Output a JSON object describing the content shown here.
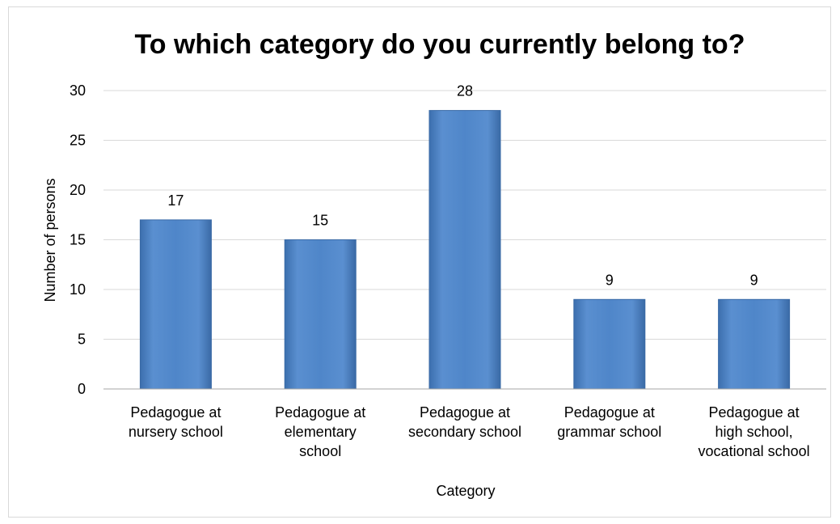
{
  "chart_data": {
    "type": "bar",
    "title": "To which category do you currently belong to?",
    "xlabel": "Category",
    "ylabel": "Number of persons",
    "categories": [
      [
        "Pedagogue at",
        "nursery school"
      ],
      [
        "Pedagogue at",
        "elementary",
        "school"
      ],
      [
        "Pedagogue at",
        "secondary school"
      ],
      [
        "Pedagogue at",
        "grammar school"
      ],
      [
        "Pedagogue at",
        "high school,",
        "vocational school"
      ]
    ],
    "values": [
      17,
      15,
      28,
      9,
      9
    ],
    "data_labels": [
      "17",
      "15",
      "28",
      "9",
      "9"
    ],
    "ylim": [
      0,
      30
    ],
    "yticks": [
      0,
      5,
      10,
      15,
      20,
      25,
      30
    ],
    "grid": true,
    "legend": "none",
    "bar_color": "#4a7ebf"
  }
}
